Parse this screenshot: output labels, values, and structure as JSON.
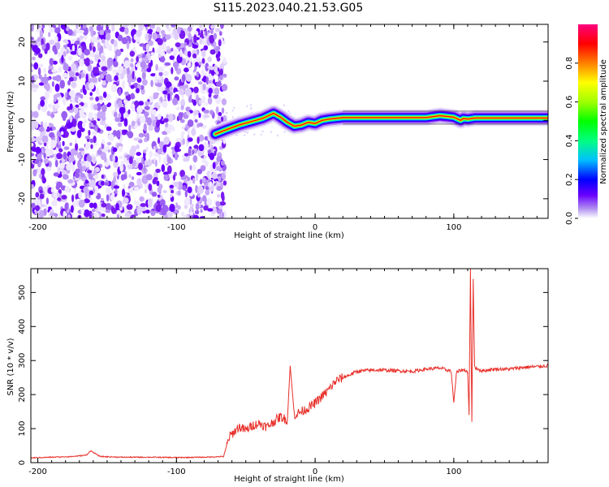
{
  "title": "S115.2023.040.21.53.G05",
  "chart_data": [
    {
      "type": "heatmap",
      "xlabel": "Height of straight line (km)",
      "ylabel": "Frequency (Hz)",
      "xlim": [
        -205,
        168
      ],
      "ylim": [
        -25,
        24.5
      ],
      "xticks": [
        -200,
        -100,
        0,
        100
      ],
      "yticks": [
        -20,
        -10,
        0,
        10,
        20
      ],
      "grid": false,
      "colorbar": {
        "label": "Normalized spectral amplitude",
        "range": [
          0,
          1
        ],
        "ticks": [
          0.0,
          0.2,
          0.4,
          0.6,
          0.8
        ]
      },
      "noise_region_x": [
        -205,
        -65
      ],
      "signal_ridge": {
        "x": [
          -72,
          -65,
          -55,
          -45,
          -38,
          -30,
          -25,
          -20,
          -15,
          -10,
          -5,
          0,
          5,
          10,
          20,
          40,
          60,
          80,
          90,
          100,
          105,
          107,
          110,
          115,
          130,
          150,
          168
        ],
        "freq": [
          -3.5,
          -2.5,
          -1.2,
          -0.2,
          0.5,
          1.8,
          0.8,
          -0.5,
          -1.5,
          -1.2,
          -0.5,
          -0.8,
          0,
          0.3,
          0.7,
          0.7,
          0.7,
          0.7,
          1.2,
          0.8,
          0,
          0.5,
          0.3,
          0.6,
          0.6,
          0.6,
          0.6
        ]
      }
    },
    {
      "type": "line",
      "xlabel": "Height of straight line (km)",
      "ylabel": "SNR (10 * v/v)",
      "xlim": [
        -205,
        168
      ],
      "ylim": [
        0,
        570
      ],
      "xticks": [
        -200,
        -100,
        0,
        100
      ],
      "yticks": [
        0,
        100,
        200,
        300,
        400,
        500
      ],
      "grid": false,
      "color": "#e8302a",
      "series": [
        {
          "x": [
            -205,
            -190,
            -175,
            -165,
            -162,
            -155,
            -140,
            -120,
            -100,
            -80,
            -66,
            -62,
            -55,
            -50,
            -45,
            -40,
            -35,
            -30,
            -25,
            -20,
            -18,
            -15,
            -10,
            -5,
            0,
            5,
            10,
            15,
            20,
            25,
            30,
            40,
            50,
            60,
            70,
            80,
            90,
            95,
            98,
            100,
            102,
            105,
            108,
            110,
            111,
            112,
            113,
            114,
            115,
            120,
            130,
            140,
            150,
            160,
            168
          ],
          "y": [
            14,
            16,
            18,
            22,
            35,
            18,
            16,
            16,
            15,
            16,
            18,
            75,
            105,
            95,
            110,
            115,
            105,
            120,
            135,
            125,
            285,
            140,
            150,
            160,
            175,
            195,
            215,
            240,
            250,
            258,
            268,
            272,
            272,
            270,
            268,
            275,
            278,
            272,
            270,
            178,
            265,
            272,
            272,
            268,
            140,
            570,
            120,
            540,
            280,
            270,
            275,
            275,
            280,
            282,
            285
          ]
        }
      ]
    }
  ]
}
